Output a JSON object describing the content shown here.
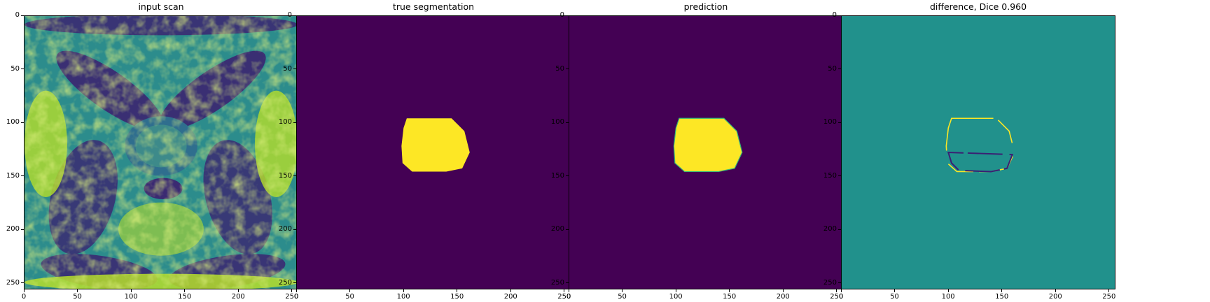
{
  "figure": {
    "panels": [
      {
        "id": "input",
        "title": "input scan",
        "content": "mri-scan",
        "x_ticks": [
          "0",
          "50",
          "100",
          "150",
          "200",
          "250"
        ],
        "y_ticks": [
          "0",
          "50",
          "100",
          "150",
          "200",
          "250"
        ]
      },
      {
        "id": "truth",
        "title": "true segmentation",
        "content": "mask",
        "x_ticks": [
          "0",
          "50",
          "100",
          "150",
          "200",
          "250"
        ],
        "y_ticks": [
          "0",
          "50",
          "100",
          "150",
          "200",
          "250"
        ]
      },
      {
        "id": "prediction",
        "title": "prediction",
        "content": "mask",
        "x_ticks": [
          "0",
          "50",
          "100",
          "150",
          "200",
          "250"
        ],
        "y_ticks": [
          "0",
          "50",
          "100",
          "150",
          "200",
          "250"
        ]
      },
      {
        "id": "difference",
        "title": "difference, Dice 0.960",
        "content": "difference",
        "x_ticks": [
          "0",
          "50",
          "100",
          "150",
          "200",
          "250"
        ],
        "y_ticks": [
          "0",
          "50",
          "100",
          "150",
          "200",
          "250"
        ]
      }
    ],
    "image_extent": [
      0,
      256
    ],
    "colormap": "viridis",
    "colors": {
      "background_low": "#440154",
      "foreground_high": "#fde725",
      "difference_zero": "#21918c",
      "difference_neg": "#3b1f73",
      "scan_dark": "#3b2a72",
      "scan_mid": "#2c8c8c",
      "scan_bright": "#b6de2b"
    },
    "mask_polygon_pixels": [
      [
        103,
        96
      ],
      [
        145,
        96
      ],
      [
        157,
        108
      ],
      [
        162,
        128
      ],
      [
        155,
        143
      ],
      [
        140,
        146
      ],
      [
        108,
        146
      ],
      [
        99,
        138
      ],
      [
        98,
        122
      ],
      [
        100,
        105
      ]
    ]
  }
}
